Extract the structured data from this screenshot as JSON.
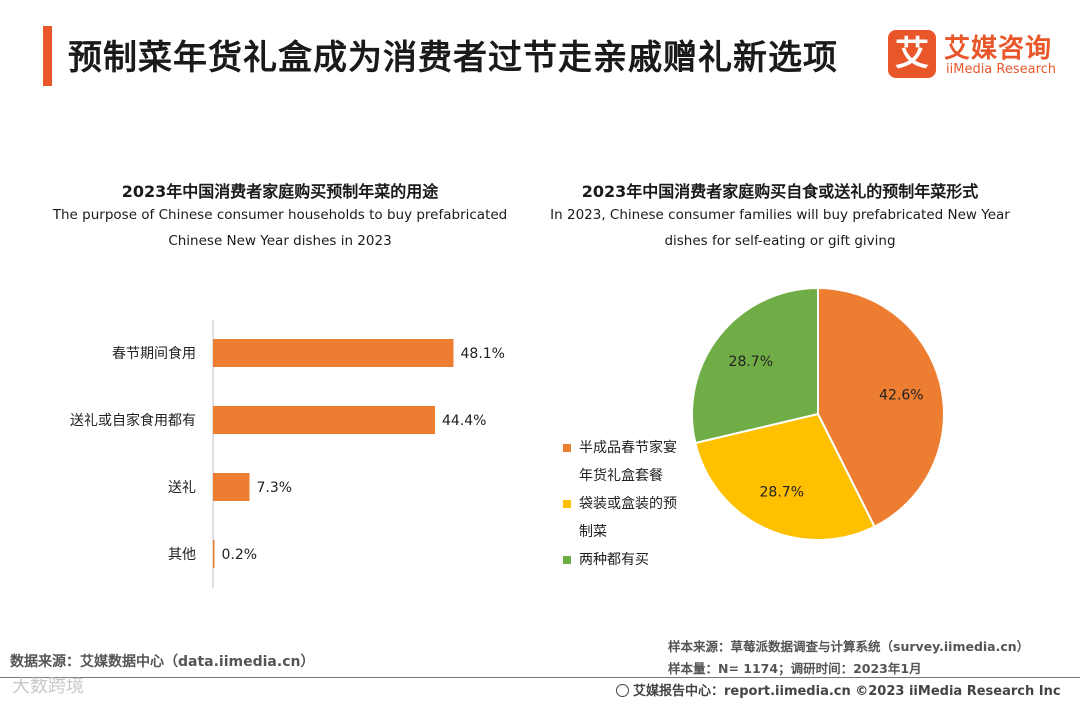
{
  "header": {
    "title": "预制菜年货礼盒成为消费者过节走亲戚赠礼新选项",
    "logo_mark": "艾",
    "logo_cn": "艾媒咨询",
    "logo_en": "iiMedia Research"
  },
  "colors": {
    "orange": "#ed7d31",
    "yellow": "#ffc000",
    "green": "#70ad47",
    "accent": "#e8562a"
  },
  "chart_data": [
    {
      "type": "bar",
      "orientation": "horizontal",
      "title": "2023年中国消费者家庭购买预制年菜的用途",
      "subtitle_lines": [
        "The purpose of Chinese consumer households to buy prefabricated",
        "Chinese New Year dishes in 2023"
      ],
      "categories": [
        "春节期间食用",
        "送礼或自家食用都有",
        "送礼",
        "其他"
      ],
      "values": [
        48.1,
        44.4,
        7.3,
        0.2
      ],
      "labels": [
        "48.1%",
        "44.4%",
        "7.3%",
        "0.2%"
      ],
      "xlim": [
        0,
        50
      ],
      "color": "#ed7d31"
    },
    {
      "type": "pie",
      "title": "2023年中国消费者家庭购买自食或送礼的预制年菜形式",
      "subtitle_lines": [
        "In 2023, Chinese consumer families will buy prefabricated New Year",
        "dishes for self-eating or gift giving"
      ],
      "slices": [
        {
          "name": "半成品春节家宴年货礼盒套餐",
          "legend_lines": [
            "半成品春节家宴",
            "年货礼盒套餐"
          ],
          "value": 42.6,
          "label": "42.6%",
          "color": "#ed7d31"
        },
        {
          "name": "袋装或盒装的预制菜",
          "legend_lines": [
            "袋装或盒装的预",
            "制菜"
          ],
          "value": 28.7,
          "label": "28.7%",
          "color": "#ffc000"
        },
        {
          "name": "两种都有买",
          "legend_lines": [
            "两种都有买"
          ],
          "value": 28.7,
          "label": "28.7%",
          "color": "#70ad47"
        }
      ],
      "legend_position": "left"
    }
  ],
  "footer": {
    "data_source": "数据来源：艾媒数据中心（data.iimedia.cn）",
    "sample_source": "样本来源：草莓派数据调查与计算系统（survey.iimedia.cn）",
    "sample_size": "样本量：N= 1174；调研时间：2023年1月",
    "copyright": "艾媒报告中心：report.iimedia.cn ©2023 iiMedia Research Inc",
    "watermark": "大数跨境"
  }
}
